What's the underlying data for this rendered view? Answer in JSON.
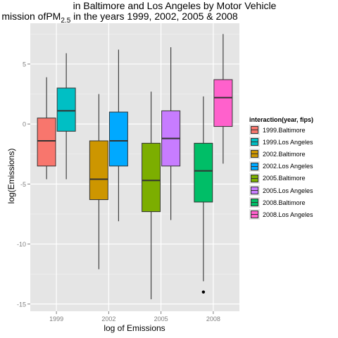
{
  "chart_data": {
    "type": "boxplot",
    "title_line1": "in Baltimore and Los Angeles by Motor Vehicle",
    "title_line2_prefix": "mission ofPM",
    "title_line2_sub": "2.5",
    "title_line2_suffix": " in the years 1999, 2002, 2005 & 2008",
    "xlabel": "log of Emissions",
    "ylabel": "log(Emissions)",
    "categories": [
      "1999",
      "2002",
      "2005",
      "2008"
    ],
    "ylim": [
      -15.6,
      8.4
    ],
    "yticks": [
      5,
      0,
      -5,
      -10,
      -15
    ],
    "legend_title": "interaction(year, fips)",
    "legend_position": "right",
    "grid": true,
    "series": [
      {
        "name": "1999.Baltimore",
        "color": "#F8766D",
        "category": "1999",
        "offset": -1,
        "whisker_low": -4.6,
        "q1": -3.5,
        "median": -1.4,
        "q3": 0.5,
        "whisker_high": 3.9,
        "outliers": []
      },
      {
        "name": "1999.Los Angeles",
        "color": "#00BFC4",
        "category": "1999",
        "offset": 1,
        "whisker_low": -4.6,
        "q1": -0.6,
        "median": 1.1,
        "q3": 3.0,
        "whisker_high": 5.9,
        "outliers": []
      },
      {
        "name": "2002.Baltimore",
        "color": "#CD9600",
        "category": "2002",
        "offset": -1,
        "whisker_low": -12.1,
        "q1": -6.3,
        "median": -4.6,
        "q3": -1.4,
        "whisker_high": 2.5,
        "outliers": []
      },
      {
        "name": "2002.Los Angeles",
        "color": "#00A9FF",
        "category": "2002",
        "offset": 1,
        "whisker_low": -8.1,
        "q1": -3.5,
        "median": -1.4,
        "q3": 1.0,
        "whisker_high": 6.2,
        "outliers": []
      },
      {
        "name": "2005.Baltimore",
        "color": "#7CAE00",
        "category": "2005",
        "offset": -1,
        "whisker_low": -14.6,
        "q1": -7.3,
        "median": -4.7,
        "q3": -1.6,
        "whisker_high": 2.7,
        "outliers": []
      },
      {
        "name": "2005.Los Angeles",
        "color": "#C77CFF",
        "category": "2005",
        "offset": 1,
        "whisker_low": -8.0,
        "q1": -3.5,
        "median": -1.2,
        "q3": 1.1,
        "whisker_high": 6.4,
        "outliers": []
      },
      {
        "name": "2008.Baltimore",
        "color": "#00BE67",
        "category": "2008",
        "offset": -1,
        "whisker_low": -13.1,
        "q1": -6.5,
        "median": -3.9,
        "q3": -1.6,
        "whisker_high": 2.3,
        "outliers": [
          -14.0
        ]
      },
      {
        "name": "2008.Los Angeles",
        "color": "#FF61CC",
        "category": "2008",
        "offset": 1,
        "whisker_low": -3.3,
        "q1": -0.2,
        "median": 2.2,
        "q3": 3.7,
        "whisker_high": 7.5,
        "outliers": []
      }
    ]
  }
}
